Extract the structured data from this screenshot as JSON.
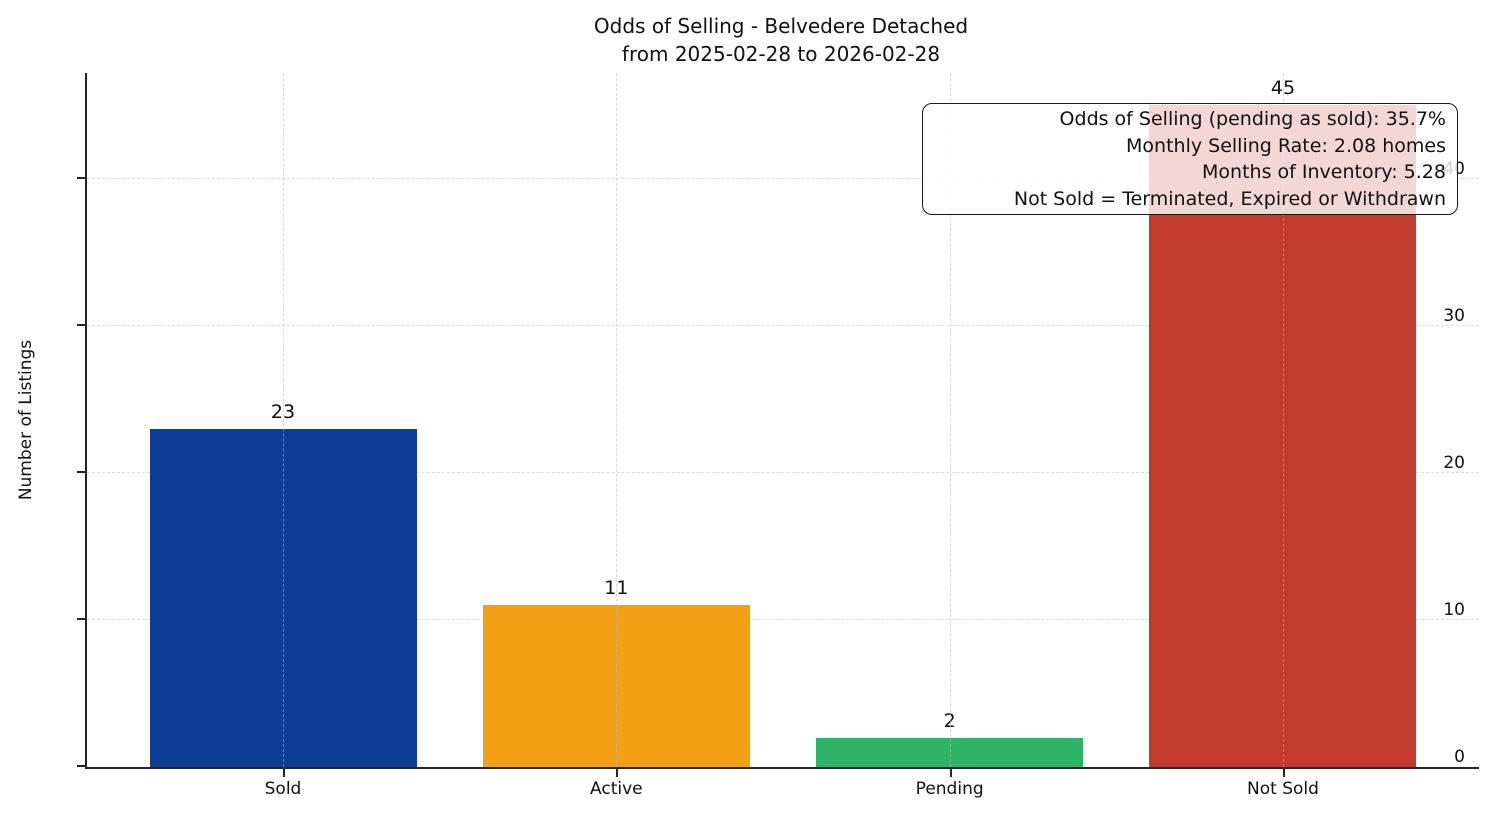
{
  "chart_data": {
    "type": "bar",
    "title": "Odds of Selling - Belvedere Detached",
    "subtitle": "from 2025-02-28 to 2026-02-28",
    "categories": [
      "Sold",
      "Active",
      "Pending",
      "Not Sold"
    ],
    "values": [
      23,
      11,
      2,
      45
    ],
    "bar_colors": [
      "#0d3d94",
      "#f4a014",
      "#2eb466",
      "#c23b2c"
    ],
    "xlabel": "",
    "ylabel": "Number of Listings",
    "yticks": [
      0,
      10,
      20,
      30,
      40
    ],
    "ylim": [
      0,
      47.2
    ],
    "grid": "dashed, both axes",
    "legend_position": "none",
    "annotation": {
      "lines": [
        "Odds of Selling (pending as sold): 35.7%",
        "Monthly Selling Rate: 2.08 homes",
        "Months of Inventory: 5.28",
        "Not Sold = Terminated, Expired or Withdrawn"
      ]
    }
  }
}
